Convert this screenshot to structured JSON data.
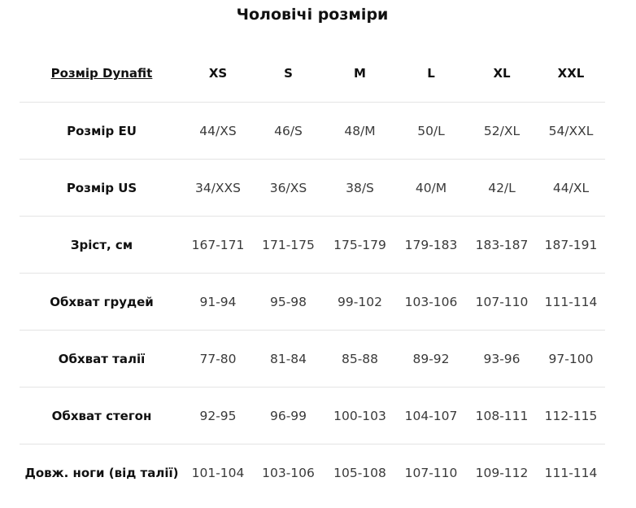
{
  "title": "Чоловічі розміри",
  "table": {
    "corner_link": "Розмір Dynafit",
    "columns": [
      "XS",
      "S",
      "M",
      "L",
      "XL",
      "XXL"
    ],
    "rows": [
      {
        "label": "Розмір EU",
        "values": [
          "44/XS",
          "46/S",
          "48/M",
          "50/L",
          "52/XL",
          "54/XXL"
        ]
      },
      {
        "label": "Розмір US",
        "values": [
          "34/XXS",
          "36/XS",
          "38/S",
          "40/M",
          "42/L",
          "44/XL"
        ]
      },
      {
        "label": "Зріст, см",
        "values": [
          "167-171",
          "171-175",
          "175-179",
          "179-183",
          "183-187",
          "187-191"
        ]
      },
      {
        "label": "Обхват грудей",
        "values": [
          "91-94",
          "95-98",
          "99-102",
          "103-106",
          "107-110",
          "111-114"
        ]
      },
      {
        "label": "Обхват талії",
        "values": [
          "77-80",
          "81-84",
          "85-88",
          "89-92",
          "93-96",
          "97-100"
        ]
      },
      {
        "label": "Обхват стегон",
        "values": [
          "92-95",
          "96-99",
          "100-103",
          "104-107",
          "108-111",
          "112-115"
        ]
      },
      {
        "label": "Довж. ноги (від талії)",
        "values": [
          "101-104",
          "103-106",
          "105-108",
          "107-110",
          "109-112",
          "111-114"
        ]
      }
    ]
  }
}
